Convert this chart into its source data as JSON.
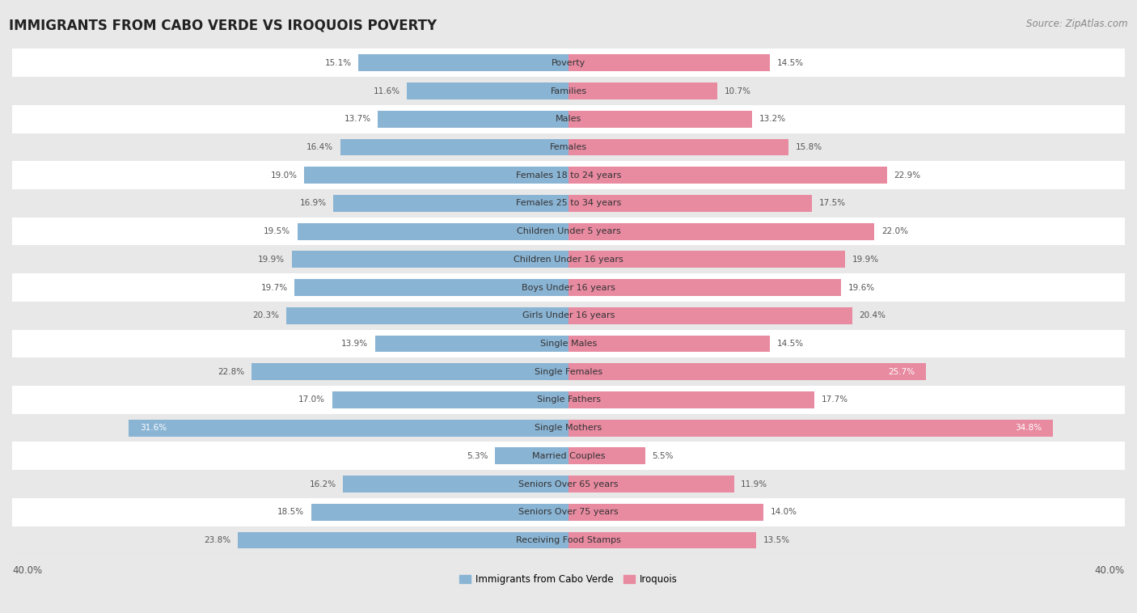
{
  "title": "IMMIGRANTS FROM CABO VERDE VS IROQUOIS POVERTY",
  "source": "Source: ZipAtlas.com",
  "categories": [
    "Poverty",
    "Families",
    "Males",
    "Females",
    "Females 18 to 24 years",
    "Females 25 to 34 years",
    "Children Under 5 years",
    "Children Under 16 years",
    "Boys Under 16 years",
    "Girls Under 16 years",
    "Single Males",
    "Single Females",
    "Single Fathers",
    "Single Mothers",
    "Married Couples",
    "Seniors Over 65 years",
    "Seniors Over 75 years",
    "Receiving Food Stamps"
  ],
  "left_values": [
    15.1,
    11.6,
    13.7,
    16.4,
    19.0,
    16.9,
    19.5,
    19.9,
    19.7,
    20.3,
    13.9,
    22.8,
    17.0,
    31.6,
    5.3,
    16.2,
    18.5,
    23.8
  ],
  "right_values": [
    14.5,
    10.7,
    13.2,
    15.8,
    22.9,
    17.5,
    22.0,
    19.9,
    19.6,
    20.4,
    14.5,
    25.7,
    17.7,
    34.8,
    5.5,
    11.9,
    14.0,
    13.5
  ],
  "left_color": "#8ab4d4",
  "right_color": "#e88aa0",
  "left_label": "Immigrants from Cabo Verde",
  "right_label": "Iroquois",
  "xlim": 40.0,
  "background_color": "#e8e8e8",
  "bar_background_color": "#ffffff",
  "title_fontsize": 12,
  "source_fontsize": 8.5,
  "label_fontsize": 8,
  "value_fontsize": 7.5,
  "axis_label_fontsize": 8.5
}
